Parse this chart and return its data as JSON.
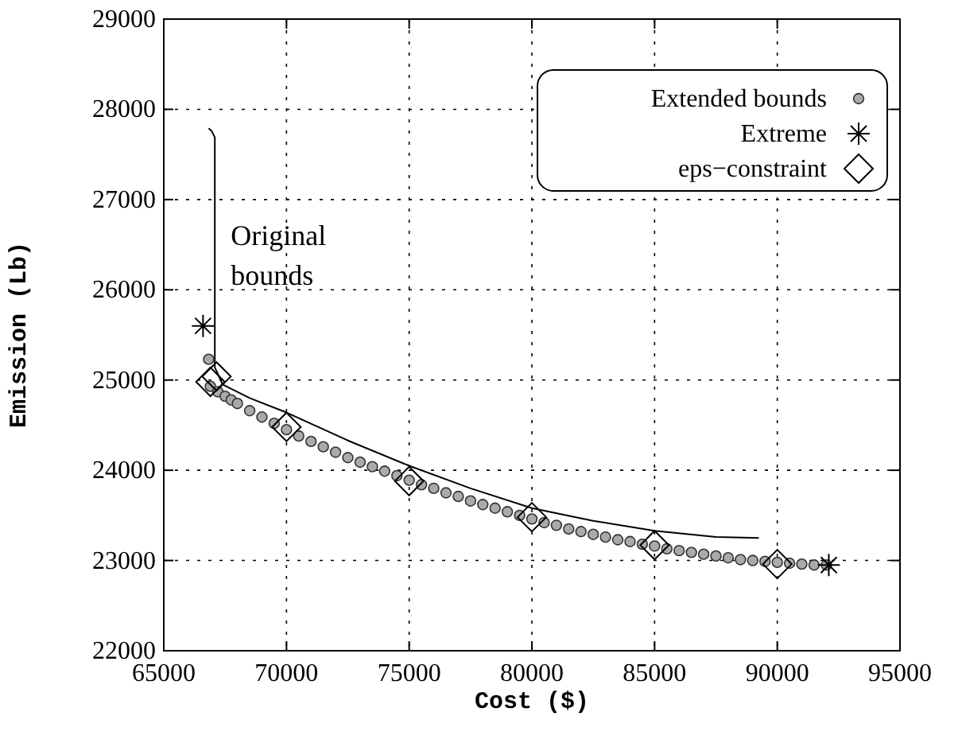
{
  "chart_data": {
    "type": "scatter",
    "xlabel": "Cost ($)",
    "ylabel": "Emission (Lb)",
    "xlim": [
      65000,
      95000
    ],
    "ylim": [
      22000,
      29000
    ],
    "xticks": [
      65000,
      70000,
      75000,
      80000,
      85000,
      90000,
      95000
    ],
    "yticks": [
      22000,
      23000,
      24000,
      25000,
      26000,
      27000,
      28000,
      29000
    ],
    "grid": true,
    "legend": "top right",
    "annotations": [
      {
        "text": "Original bounds",
        "x": 67080,
        "y": 26500
      }
    ],
    "series": [
      {
        "type": "line",
        "color": "#000000",
        "marker": "none",
        "line_style": "solid",
        "x": [
          66830,
          66950,
          67080,
          67080,
          67400,
          68500,
          70000,
          72500,
          75000,
          77500,
          80000,
          82500,
          85000,
          87500,
          89250
        ],
        "values": [
          27790,
          27760,
          27690,
          25140,
          24950,
          24800,
          24640,
          24330,
          24050,
          23800,
          23580,
          23440,
          23330,
          23260,
          23250
        ]
      },
      {
        "name": "Extended bounds",
        "color": "#aaaaaa",
        "marker": "circle",
        "x": [
          66830,
          66900,
          67200,
          67500,
          67750,
          68000,
          68500,
          69000,
          69500,
          70000,
          70500,
          71000,
          71500,
          72000,
          72500,
          73000,
          73500,
          74000,
          74500,
          75000,
          75500,
          76000,
          76500,
          77000,
          77500,
          78000,
          78500,
          79000,
          79500,
          80000,
          80500,
          81000,
          81500,
          82000,
          82500,
          83000,
          83500,
          84000,
          84500,
          85000,
          85500,
          86000,
          86500,
          87000,
          87500,
          88000,
          88500,
          89000,
          89500,
          90000,
          90500,
          91000,
          91500,
          92000
        ],
        "values": [
          25230,
          24930,
          24870,
          24820,
          24780,
          24740,
          24660,
          24590,
          24520,
          24450,
          24380,
          24320,
          24260,
          24200,
          24140,
          24090,
          24040,
          23990,
          23940,
          23890,
          23840,
          23800,
          23750,
          23710,
          23660,
          23620,
          23580,
          23540,
          23500,
          23460,
          23420,
          23390,
          23350,
          23320,
          23290,
          23260,
          23230,
          23210,
          23180,
          23160,
          23130,
          23110,
          23090,
          23070,
          23050,
          23030,
          23010,
          23000,
          22990,
          22980,
          22970,
          22960,
          22950,
          22950
        ]
      },
      {
        "name": "Extreme",
        "color": "#000000",
        "marker": "cross",
        "x": [
          66600,
          92100
        ],
        "values": [
          25600,
          22950
        ]
      },
      {
        "name": "eps−constraint",
        "color": "#000000",
        "marker": "diamond",
        "x": [
          66900,
          67150,
          70000,
          75000,
          80000,
          85000,
          90000
        ],
        "values": [
          24980,
          25040,
          24480,
          23880,
          23480,
          23170,
          22960
        ]
      }
    ]
  }
}
